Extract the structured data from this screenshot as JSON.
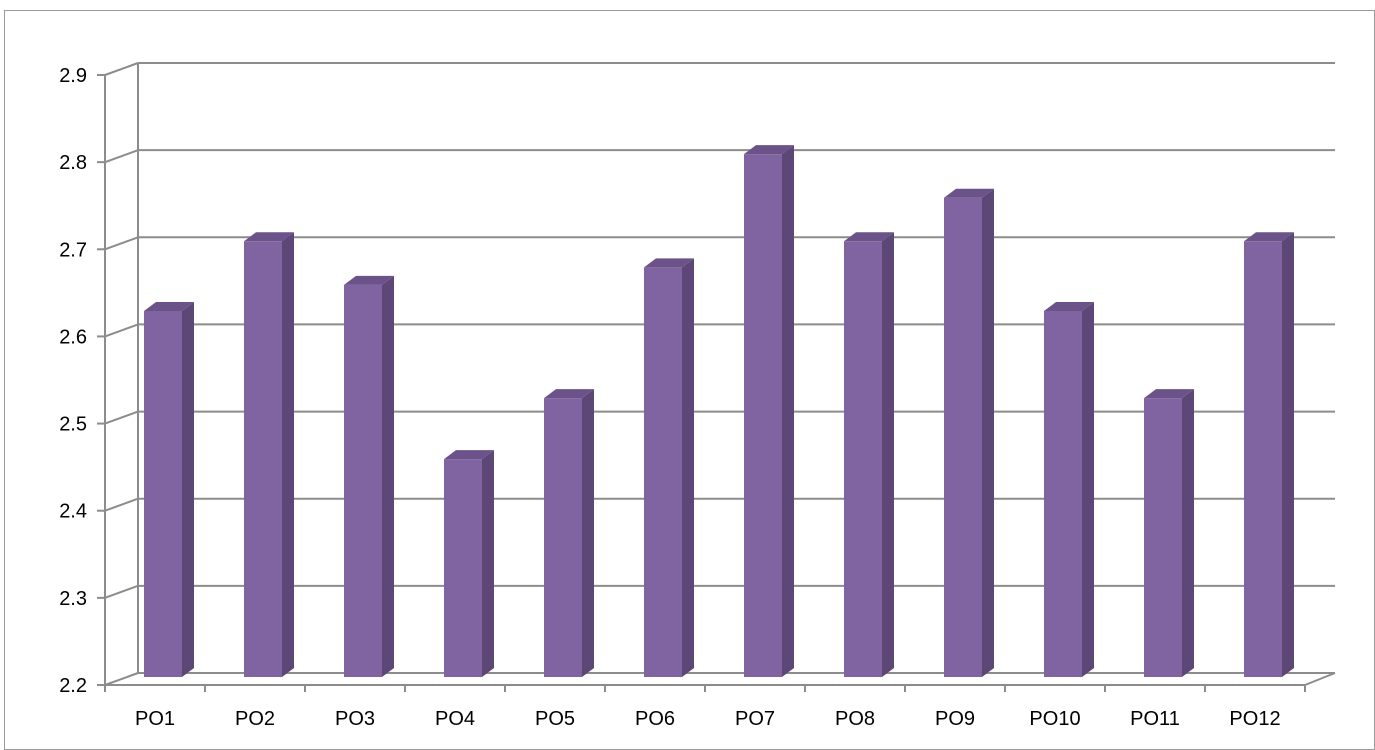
{
  "chart_data": {
    "type": "bar",
    "title": "",
    "xlabel": "",
    "ylabel": "",
    "categories": [
      "PO1",
      "PO2",
      "PO3",
      "PO4",
      "PO5",
      "PO6",
      "PO7",
      "PO8",
      "PO9",
      "PO10",
      "PO11",
      "PO12"
    ],
    "values": [
      2.62,
      2.7,
      2.65,
      2.45,
      2.52,
      2.67,
      2.8,
      2.7,
      2.75,
      2.62,
      2.52,
      2.7
    ],
    "ylim": [
      2.2,
      2.9
    ],
    "yticks": [
      "2.2",
      "2.3",
      "2.4",
      "2.5",
      "2.6",
      "2.7",
      "2.8",
      "2.9"
    ],
    "grid": true,
    "legend": "none",
    "style": "3d-column",
    "colors": {
      "bar_front": "#8064A2",
      "bar_side": "#5C4777",
      "bar_top": "#6B5289",
      "grid": "#8c8c8c",
      "axis": "#8c8c8c"
    }
  }
}
